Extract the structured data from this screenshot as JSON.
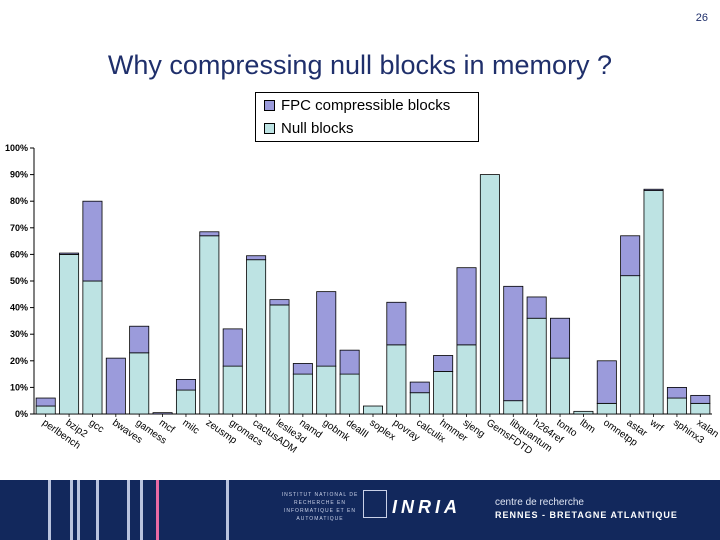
{
  "page_number": "26",
  "title": "Why compressing null blocks in memory ?",
  "legend": {
    "fpc_label": "FPC compressible blocks",
    "null_label": "Null blocks"
  },
  "colors": {
    "fpc": "#9b9bdb",
    "null": "#bde3e3",
    "title": "#1f2f6b",
    "footer_bg": "#12285c"
  },
  "footer": {
    "institute": "INSTITUT NATIONAL DE RECHERCHE EN INFORMATIQUE ET EN AUTOMATIQUE",
    "logo": "INRIA",
    "centre_line1": "centre de recherche",
    "centre_line2": "RENNES - BRETAGNE ATLANTIQUE"
  },
  "chart_data": {
    "type": "bar",
    "stacked": true,
    "categories": [
      "perlbench",
      "bzip2",
      "gcc",
      "bwaves",
      "gamess",
      "mcf",
      "milc",
      "zeusmp",
      "gromacs",
      "cactusADM",
      "leslie3d",
      "namd",
      "gobmk",
      "dealII",
      "soplex",
      "povray",
      "calculix",
      "hmmer",
      "sjeng",
      "GemsFDTD",
      "libquantum",
      "h264ref",
      "tonto",
      "lbm",
      "omnetpp",
      "astar",
      "wrf",
      "sphinx3",
      "xalan"
    ],
    "series": [
      {
        "name": "Null blocks",
        "values": [
          3,
          60,
          50,
          0,
          23,
          0,
          9,
          67,
          18,
          58,
          41,
          15,
          18,
          15,
          3,
          26,
          8,
          16,
          26,
          90,
          5,
          36,
          21,
          1,
          4,
          52,
          84,
          6,
          4
        ]
      },
      {
        "name": "FPC compressible blocks",
        "values": [
          3,
          0.5,
          30,
          21,
          10,
          0.5,
          4,
          1.5,
          14,
          1.5,
          2,
          4,
          28,
          9,
          0,
          16,
          4,
          6,
          29,
          0,
          43,
          8,
          15,
          0,
          16,
          15,
          0.5,
          4,
          3
        ]
      }
    ],
    "yticks": [
      "0%",
      "10%",
      "20%",
      "30%",
      "40%",
      "50%",
      "60%",
      "70%",
      "80%",
      "90%",
      "100%"
    ],
    "ylim": [
      0,
      100
    ],
    "legend_position": "top-center",
    "grid": false
  }
}
